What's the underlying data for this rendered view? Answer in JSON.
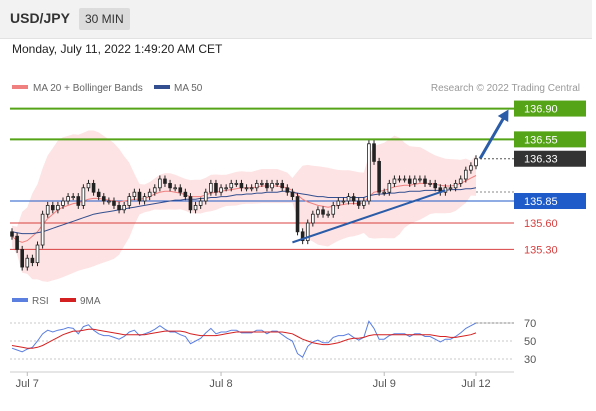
{
  "header": {
    "symbol": "USD/JPY",
    "timeframe": "30 MIN",
    "datetime": "Monday, July 11, 2022 1:49:20 AM CET"
  },
  "legend": {
    "ma20": "MA 20 + Bollinger Bands",
    "ma50": "MA 50",
    "credit": "Research © 2022 Trading Central"
  },
  "colors": {
    "ma20": "#f08080",
    "ma50": "#334f8f",
    "bands_fill": "#fde3e3",
    "resistance": "#55a317",
    "pivot": "#1f5bc9",
    "support": "#d84040",
    "candle": "#222222",
    "rsi": "#5b7fe0",
    "rsi_ma": "#d42020",
    "arrow": "#2a5ca8",
    "last_price": "#333333"
  },
  "chart_data": [
    {
      "type": "candlestick",
      "title": "USD/JPY 30 MIN",
      "ylim": [
        134.93,
        137.02
      ],
      "x_labels": [
        "Jul 7",
        "Jul 8",
        "Jul 9",
        "Jul 12"
      ],
      "last_price": 136.33,
      "levels": [
        {
          "value": 136.9,
          "label": "136.90",
          "kind": "resistance"
        },
        {
          "value": 136.55,
          "label": "136.55",
          "kind": "resistance"
        },
        {
          "value": 135.85,
          "label": "135.85",
          "kind": "pivot"
        },
        {
          "value": 135.6,
          "label": "135.60",
          "kind": "support"
        },
        {
          "value": 135.3,
          "label": "135.30",
          "kind": "support"
        }
      ],
      "close": [
        135.45,
        135.3,
        135.1,
        135.2,
        135.15,
        135.35,
        135.7,
        135.8,
        135.75,
        135.8,
        135.85,
        135.9,
        135.9,
        135.8,
        136.0,
        136.05,
        135.95,
        135.9,
        135.85,
        135.85,
        135.8,
        135.75,
        135.8,
        135.9,
        135.95,
        135.85,
        135.9,
        135.95,
        136.0,
        136.1,
        136.05,
        136.0,
        136.0,
        135.95,
        135.9,
        135.75,
        135.8,
        135.85,
        135.95,
        136.05,
        135.95,
        136.0,
        136.0,
        136.05,
        136.05,
        136.0,
        136.0,
        136.0,
        136.05,
        136.05,
        136.0,
        136.05,
        136.05,
        136.0,
        135.95,
        135.9,
        135.5,
        135.4,
        135.6,
        135.7,
        135.75,
        135.7,
        135.7,
        135.8,
        135.85,
        135.85,
        135.9,
        135.85,
        135.8,
        135.85,
        136.5,
        136.3,
        135.95,
        135.95,
        136.05,
        136.1,
        136.1,
        136.1,
        136.05,
        136.1,
        136.1,
        136.05,
        136.05,
        136.0,
        135.95,
        136.0,
        136.0,
        136.05,
        136.1,
        136.2,
        136.25,
        136.33
      ],
      "ma20": [
        135.45,
        135.4,
        135.38,
        135.4,
        135.45,
        135.5,
        135.58,
        135.65,
        135.7,
        135.75,
        135.78,
        135.8,
        135.82,
        135.83,
        135.85,
        135.87,
        135.88,
        135.88,
        135.87,
        135.86,
        135.85,
        135.84,
        135.85,
        135.86,
        135.87,
        135.87,
        135.88,
        135.9,
        135.93,
        135.95,
        135.96,
        135.96,
        135.95,
        135.94,
        135.92,
        135.9,
        135.9,
        135.9,
        135.92,
        135.94,
        135.95,
        135.96,
        135.97,
        135.98,
        135.99,
        136.0,
        136.0,
        136.0,
        136.01,
        136.02,
        136.02,
        136.02,
        136.02,
        136.01,
        136.0,
        135.97,
        135.92,
        135.87,
        135.84,
        135.82,
        135.8,
        135.79,
        135.78,
        135.79,
        135.8,
        135.81,
        135.82,
        135.82,
        135.82,
        135.83,
        135.9,
        135.95,
        135.96,
        135.97,
        135.99,
        136.01,
        136.02,
        136.03,
        136.03,
        136.04,
        136.05,
        136.05,
        136.05,
        136.04,
        136.03,
        136.02,
        136.02,
        136.03,
        136.05,
        136.08,
        136.11,
        136.14
      ],
      "ma50": [
        135.5,
        135.49,
        135.48,
        135.48,
        135.48,
        135.49,
        135.5,
        135.52,
        135.54,
        135.56,
        135.58,
        135.6,
        135.62,
        135.64,
        135.66,
        135.68,
        135.7,
        135.71,
        135.72,
        135.73,
        135.74,
        135.75,
        135.76,
        135.77,
        135.78,
        135.79,
        135.8,
        135.81,
        135.82,
        135.83,
        135.84,
        135.85,
        135.86,
        135.86,
        135.87,
        135.87,
        135.87,
        135.88,
        135.88,
        135.89,
        135.89,
        135.9,
        135.9,
        135.91,
        135.92,
        135.92,
        135.93,
        135.93,
        135.94,
        135.94,
        135.95,
        135.95,
        135.95,
        135.96,
        135.96,
        135.95,
        135.94,
        135.93,
        135.92,
        135.91,
        135.9,
        135.9,
        135.89,
        135.89,
        135.89,
        135.89,
        135.89,
        135.89,
        135.89,
        135.89,
        135.91,
        135.92,
        135.93,
        135.93,
        135.94,
        135.94,
        135.95,
        135.95,
        135.96,
        135.96,
        135.96,
        135.97,
        135.97,
        135.97,
        135.97,
        135.97,
        135.98,
        135.98,
        135.98,
        135.99,
        135.99,
        136.0
      ]
    },
    {
      "type": "line",
      "series": [
        {
          "name": "RSI",
          "values": [
            42,
            40,
            38,
            41,
            43,
            50,
            58,
            62,
            60,
            62,
            63,
            65,
            64,
            58,
            66,
            68,
            62,
            58,
            56,
            56,
            54,
            52,
            55,
            60,
            62,
            56,
            58,
            60,
            63,
            67,
            63,
            60,
            60,
            57,
            55,
            47,
            50,
            53,
            59,
            64,
            58,
            60,
            60,
            62,
            62,
            59,
            59,
            59,
            62,
            62,
            58,
            61,
            61,
            57,
            53,
            50,
            36,
            32,
            44,
            49,
            51,
            48,
            48,
            54,
            56,
            56,
            58,
            54,
            51,
            54,
            72,
            64,
            52,
            52,
            56,
            58,
            58,
            58,
            55,
            58,
            58,
            55,
            55,
            52,
            49,
            52,
            52,
            55,
            59,
            64,
            67,
            70
          ]
        },
        {
          "name": "9MA",
          "values": [
            45,
            44,
            43,
            42,
            42,
            43,
            45,
            48,
            51,
            54,
            57,
            59,
            61,
            61,
            62,
            63,
            63,
            62,
            61,
            60,
            59,
            58,
            57,
            57,
            57,
            57,
            57,
            58,
            59,
            60,
            61,
            61,
            61,
            61,
            60,
            58,
            57,
            56,
            56,
            56,
            56,
            57,
            58,
            59,
            60,
            60,
            60,
            60,
            60,
            60,
            60,
            60,
            60,
            60,
            59,
            58,
            55,
            52,
            50,
            48,
            47,
            46,
            46,
            47,
            48,
            50,
            52,
            53,
            53,
            54,
            56,
            57,
            57,
            57,
            57,
            57,
            57,
            57,
            57,
            57,
            57,
            57,
            57,
            56,
            55,
            55,
            54,
            54,
            55,
            56,
            57,
            59
          ]
        }
      ],
      "legend": [
        "RSI",
        "9MA"
      ],
      "y_ticks": [
        "70",
        "50",
        "30"
      ],
      "ylim": [
        20,
        80
      ]
    }
  ]
}
